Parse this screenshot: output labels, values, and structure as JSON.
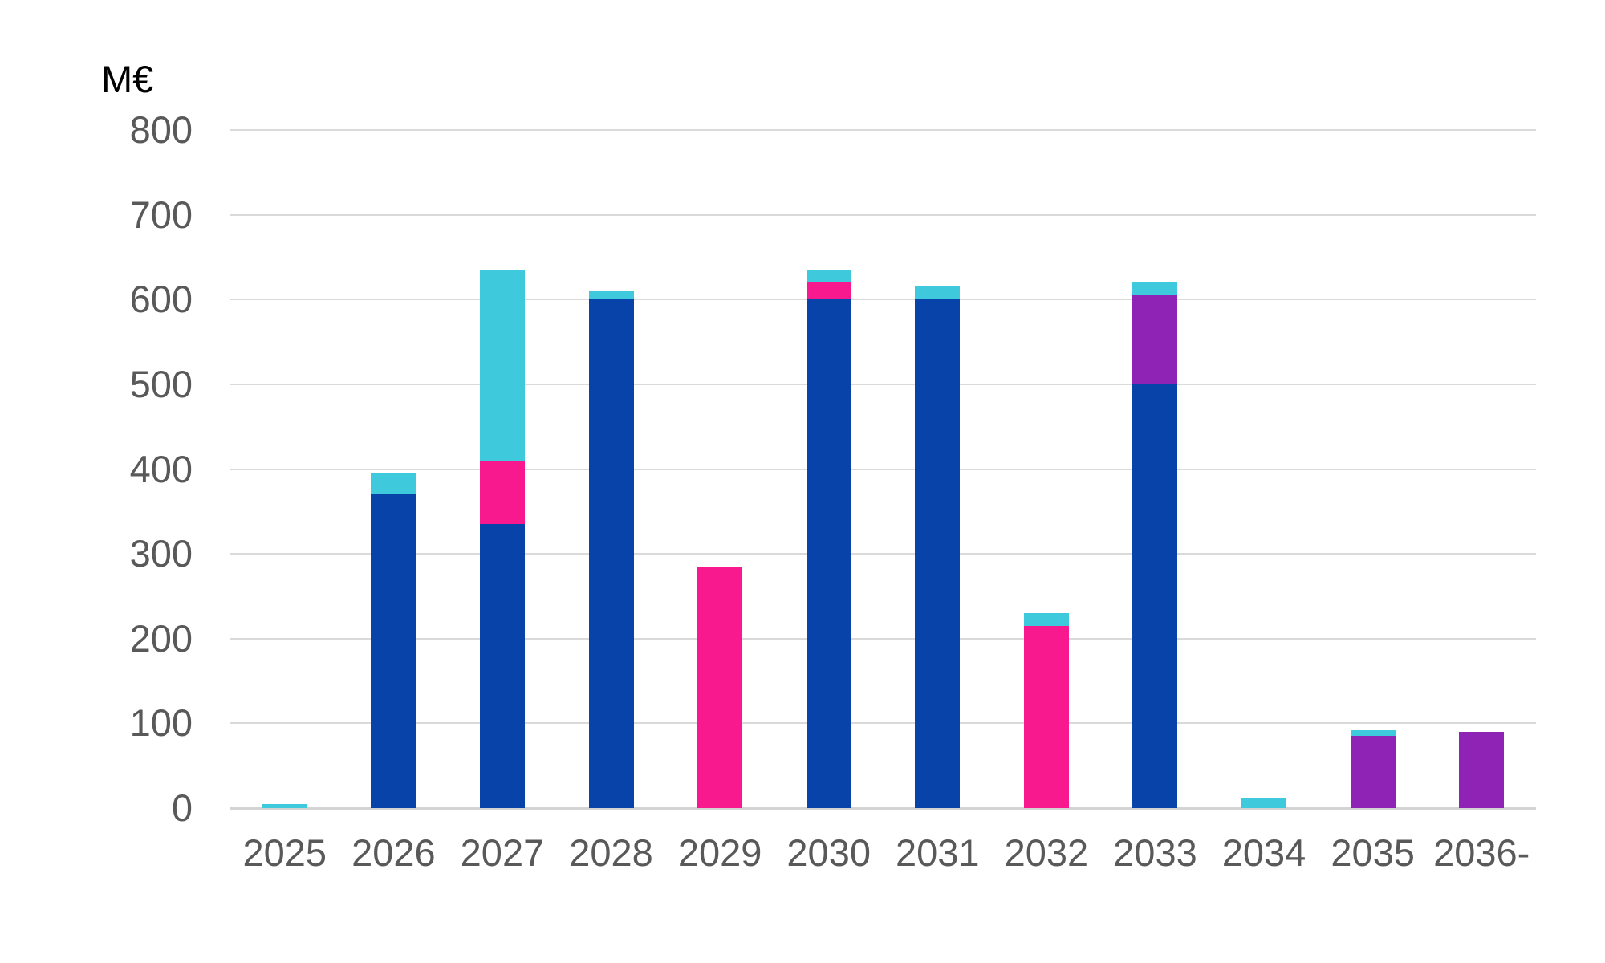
{
  "figure": {
    "background": "#FFFFFF"
  },
  "chart_data": {
    "type": "bar",
    "stacked": true,
    "title": "",
    "unit_label": "M€",
    "xlabel": "",
    "ylabel": "M€",
    "categories": [
      "2025",
      "2026",
      "2027",
      "2028",
      "2029",
      "2030",
      "2031",
      "2032",
      "2033",
      "2034",
      "2035",
      "2036-"
    ],
    "series": [
      {
        "name": "dark-blue",
        "color": "#0743A9",
        "values": [
          0,
          370,
          335,
          600,
          0,
          600,
          600,
          0,
          500,
          0,
          0,
          0
        ]
      },
      {
        "name": "pink",
        "color": "#F9198F",
        "values": [
          0,
          0,
          75,
          0,
          285,
          20,
          0,
          215,
          0,
          0,
          0,
          0
        ]
      },
      {
        "name": "purple",
        "color": "#8E23B5",
        "values": [
          0,
          0,
          0,
          0,
          0,
          0,
          0,
          0,
          105,
          0,
          85,
          90
        ]
      },
      {
        "name": "cyan",
        "color": "#3EC9DC",
        "values": [
          5,
          25,
          225,
          10,
          0,
          15,
          15,
          15,
          15,
          12,
          7,
          0
        ]
      }
    ],
    "ylim": [
      0,
      800
    ],
    "yticks": [
      0,
      100,
      200,
      300,
      400,
      500,
      600,
      700,
      800
    ],
    "grid": true,
    "legend": "none",
    "colors": {
      "axis_text": "#595959",
      "unit_label_text": "#000000",
      "gridline": "#DADADA",
      "background": "#FFFFFF"
    }
  }
}
